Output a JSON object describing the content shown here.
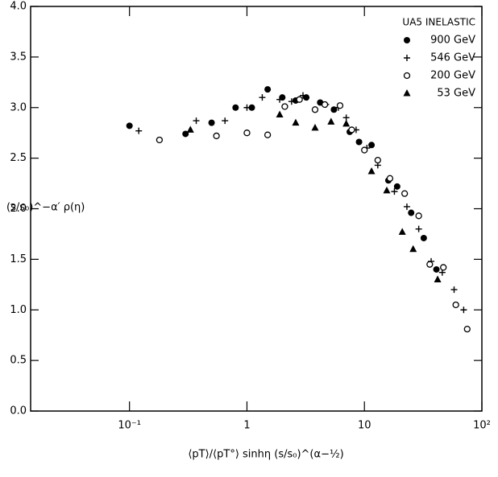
{
  "chart_data": {
    "type": "scatter",
    "y_label": "(s/s₀)^−α′ ρ(η)",
    "x_label": "⟨pT⟩/⟨pT°⟩  sinhη (s/s₀)^(α−½)",
    "legend_title": "UA5 INELASTIC",
    "legend": "upper right",
    "xscale": "log",
    "xlim": [
      0.0144,
      100
    ],
    "ylim": [
      0,
      4
    ],
    "xticks": [
      {
        "value": 0.1,
        "label": "10⁻¹"
      },
      1,
      10,
      {
        "value": 100,
        "label": "10²"
      }
    ],
    "yticks": [
      {
        "value": 0,
        "label": "0.0"
      },
      0.5,
      {
        "value": 1,
        "label": "1.0"
      },
      1.5,
      {
        "value": 2,
        "label": "2.0"
      },
      2.5,
      {
        "value": 3,
        "label": "3.0"
      },
      3.5,
      {
        "value": 4,
        "label": "4.0"
      }
    ],
    "series": [
      {
        "name": "900 GeV",
        "color": "#000000",
        "marker": "filled-circle",
        "x": [
          0.1,
          0.3,
          0.5,
          0.8,
          1.1,
          1.5,
          2.0,
          2.6,
          3.2,
          4.2,
          5.5,
          7.5,
          9,
          11.5,
          16,
          19,
          25,
          32,
          41
        ],
        "values": [
          2.82,
          2.74,
          2.85,
          3.0,
          3.0,
          3.18,
          3.1,
          3.07,
          3.1,
          3.05,
          2.98,
          2.76,
          2.66,
          2.63,
          2.28,
          2.22,
          1.96,
          1.71,
          1.4
        ]
      },
      {
        "name": "546 GeV",
        "color": "#000000",
        "marker": "plus",
        "x": [
          0.12,
          0.37,
          0.65,
          1.0,
          1.35,
          1.9,
          2.4,
          3.0,
          3.8,
          4.7,
          6.0,
          7.0,
          8.5,
          10.5,
          13,
          18,
          23,
          29,
          37,
          46,
          58,
          70
        ],
        "values": [
          2.77,
          2.87,
          2.87,
          3.0,
          3.1,
          3.08,
          3.06,
          3.12,
          2.98,
          3.03,
          3.0,
          2.9,
          2.78,
          2.6,
          2.43,
          2.17,
          2.02,
          1.8,
          1.48,
          1.37,
          1.2,
          1.0
        ]
      },
      {
        "name": "200 GeV",
        "color": "#000000",
        "marker": "open-circle",
        "x": [
          0.18,
          0.55,
          1.0,
          1.5,
          2.1,
          2.8,
          3.8,
          4.6,
          6.2,
          7.8,
          10,
          13,
          16.5,
          22,
          29,
          36,
          47,
          60,
          75
        ],
        "values": [
          2.68,
          2.72,
          2.75,
          2.73,
          3.01,
          3.08,
          2.98,
          3.03,
          3.02,
          2.78,
          2.58,
          2.48,
          2.3,
          2.15,
          1.93,
          1.45,
          1.42,
          1.05,
          0.81
        ]
      },
      {
        "name": "53 GeV",
        "color": "#000000",
        "marker": "filled-triangle",
        "x": [
          0.33,
          1.9,
          2.6,
          3.8,
          5.2,
          7.0,
          11.5,
          15.5,
          21,
          26,
          42
        ],
        "values": [
          2.78,
          2.93,
          2.85,
          2.8,
          2.86,
          2.84,
          2.37,
          2.18,
          1.77,
          1.6,
          1.3
        ]
      }
    ]
  }
}
